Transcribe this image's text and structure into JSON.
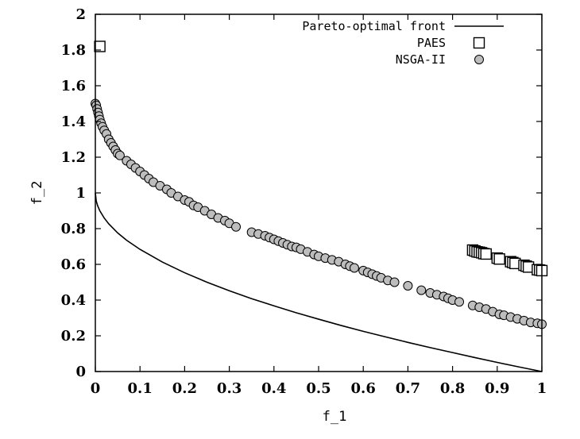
{
  "chart_data": {
    "type": "scatter",
    "xlabel": "f_1",
    "ylabel": "f_2",
    "xlim": [
      0,
      1
    ],
    "ylim": [
      0,
      2
    ],
    "xticks": [
      "0",
      "0.1",
      "0.2",
      "0.3",
      "0.4",
      "0.5",
      "0.6",
      "0.7",
      "0.8",
      "0.9",
      "1"
    ],
    "yticks": [
      "0",
      "0.2",
      "0.4",
      "0.6",
      "0.8",
      "1",
      "1.2",
      "1.4",
      "1.6",
      "1.8",
      "2"
    ],
    "legend_position": "top-right",
    "grid": false,
    "series": [
      {
        "name": "Pareto-optimal front",
        "style": "line",
        "color": "#000000",
        "x": [
          0,
          0.002,
          0.005,
          0.01,
          0.02,
          0.03,
          0.05,
          0.07,
          0.1,
          0.15,
          0.2,
          0.25,
          0.3,
          0.35,
          0.4,
          0.45,
          0.5,
          0.55,
          0.6,
          0.65,
          0.7,
          0.75,
          0.8,
          0.85,
          0.9,
          0.95,
          1.0
        ],
        "y": [
          1.0,
          0.955,
          0.929,
          0.9,
          0.859,
          0.827,
          0.776,
          0.735,
          0.684,
          0.613,
          0.553,
          0.5,
          0.452,
          0.408,
          0.368,
          0.329,
          0.293,
          0.258,
          0.225,
          0.194,
          0.163,
          0.134,
          0.106,
          0.078,
          0.051,
          0.025,
          0.0
        ]
      },
      {
        "name": "PAES",
        "style": "square",
        "color": "#000000",
        "x": [
          0.01,
          0.845,
          0.85,
          0.855,
          0.86,
          0.865,
          0.87,
          0.875,
          0.9,
          0.905,
          0.93,
          0.935,
          0.94,
          0.96,
          0.965,
          0.97,
          0.99,
          0.995,
          1.0
        ],
        "y": [
          1.82,
          0.68,
          0.675,
          0.67,
          0.668,
          0.665,
          0.66,
          0.658,
          0.635,
          0.63,
          0.615,
          0.61,
          0.605,
          0.595,
          0.59,
          0.585,
          0.57,
          0.568,
          0.565
        ]
      },
      {
        "name": "NSGA-II",
        "style": "circle",
        "color": "#bdbdbd",
        "x": [
          0.0,
          0.002,
          0.004,
          0.006,
          0.008,
          0.01,
          0.013,
          0.016,
          0.02,
          0.025,
          0.03,
          0.035,
          0.04,
          0.045,
          0.05,
          0.055,
          0.07,
          0.08,
          0.09,
          0.1,
          0.11,
          0.12,
          0.13,
          0.145,
          0.16,
          0.17,
          0.185,
          0.2,
          0.21,
          0.22,
          0.23,
          0.245,
          0.26,
          0.275,
          0.29,
          0.3,
          0.315,
          0.35,
          0.365,
          0.38,
          0.39,
          0.4,
          0.41,
          0.42,
          0.43,
          0.44,
          0.45,
          0.46,
          0.475,
          0.49,
          0.5,
          0.515,
          0.53,
          0.545,
          0.56,
          0.57,
          0.58,
          0.6,
          0.61,
          0.62,
          0.63,
          0.64,
          0.655,
          0.67,
          0.7,
          0.73,
          0.75,
          0.765,
          0.78,
          0.79,
          0.8,
          0.815,
          0.845,
          0.86,
          0.875,
          0.89,
          0.905,
          0.915,
          0.93,
          0.945,
          0.96,
          0.975,
          0.99,
          1.0
        ],
        "y": [
          1.5,
          1.49,
          1.47,
          1.45,
          1.43,
          1.41,
          1.39,
          1.37,
          1.35,
          1.33,
          1.3,
          1.28,
          1.26,
          1.24,
          1.22,
          1.21,
          1.18,
          1.16,
          1.14,
          1.12,
          1.1,
          1.08,
          1.06,
          1.04,
          1.02,
          1.0,
          0.98,
          0.96,
          0.95,
          0.93,
          0.92,
          0.9,
          0.88,
          0.86,
          0.845,
          0.83,
          0.81,
          0.78,
          0.77,
          0.76,
          0.75,
          0.74,
          0.73,
          0.72,
          0.71,
          0.7,
          0.695,
          0.685,
          0.67,
          0.655,
          0.645,
          0.635,
          0.625,
          0.615,
          0.6,
          0.59,
          0.58,
          0.565,
          0.555,
          0.545,
          0.535,
          0.525,
          0.51,
          0.5,
          0.48,
          0.455,
          0.44,
          0.43,
          0.42,
          0.41,
          0.4,
          0.39,
          0.37,
          0.36,
          0.35,
          0.335,
          0.32,
          0.315,
          0.305,
          0.295,
          0.285,
          0.275,
          0.27,
          0.265
        ]
      }
    ]
  }
}
